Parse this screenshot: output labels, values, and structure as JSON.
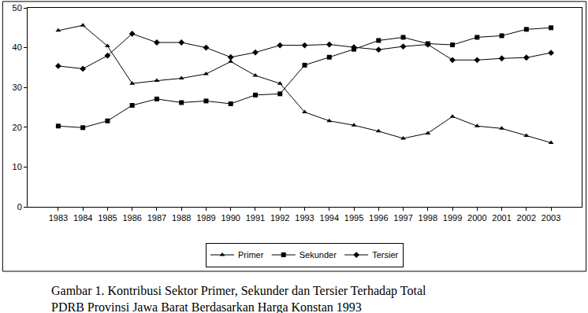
{
  "chart_data": {
    "type": "line",
    "title": "Gambar 1. Kontribusi Sektor Primer, Sekunder dan Tersier Terhadap Total\nPDRB Provinsi Jawa Barat Berdasarkan Harga Konstan 1993",
    "categories": [
      "1983",
      "1984",
      "1985",
      "1986",
      "1987",
      "1988",
      "1989",
      "1990",
      "1991",
      "1992",
      "1993",
      "1994",
      "1995",
      "1996",
      "1997",
      "1998",
      "1999",
      "2000",
      "2001",
      "2002",
      "2003"
    ],
    "series": [
      {
        "name": "Primer",
        "color": "#000000",
        "marker": "triangle-up",
        "line_style": "solid",
        "values": [
          44.3,
          45.6,
          40.4,
          31.0,
          31.7,
          32.3,
          33.4,
          36.5,
          33.0,
          31.0,
          23.8,
          21.6,
          20.5,
          19.0,
          17.2,
          18.5,
          22.7,
          20.3,
          19.7,
          17.9,
          16.1
        ]
      },
      {
        "name": "Sekunder",
        "color": "#000000",
        "marker": "square",
        "line_style": "solid",
        "values": [
          20.3,
          19.9,
          21.6,
          25.5,
          27.1,
          26.2,
          26.6,
          25.9,
          28.1,
          28.4,
          35.6,
          37.6,
          39.6,
          41.8,
          42.6,
          41.0,
          40.7,
          42.6,
          43.0,
          44.6,
          45.0
        ]
      },
      {
        "name": "Tersier",
        "color": "#000000",
        "marker": "diamond",
        "line_style": "solid",
        "values": [
          35.4,
          34.7,
          38.0,
          43.5,
          41.3,
          41.3,
          40.0,
          37.6,
          38.8,
          40.6,
          40.6,
          40.8,
          40.1,
          39.5,
          40.3,
          40.8,
          36.9,
          36.9,
          37.3,
          37.5,
          38.7
        ]
      }
    ],
    "ylim": [
      0,
      50
    ],
    "yticks": [
      0,
      10,
      20,
      30,
      40,
      50
    ],
    "grid": false,
    "legend": "bottom"
  }
}
